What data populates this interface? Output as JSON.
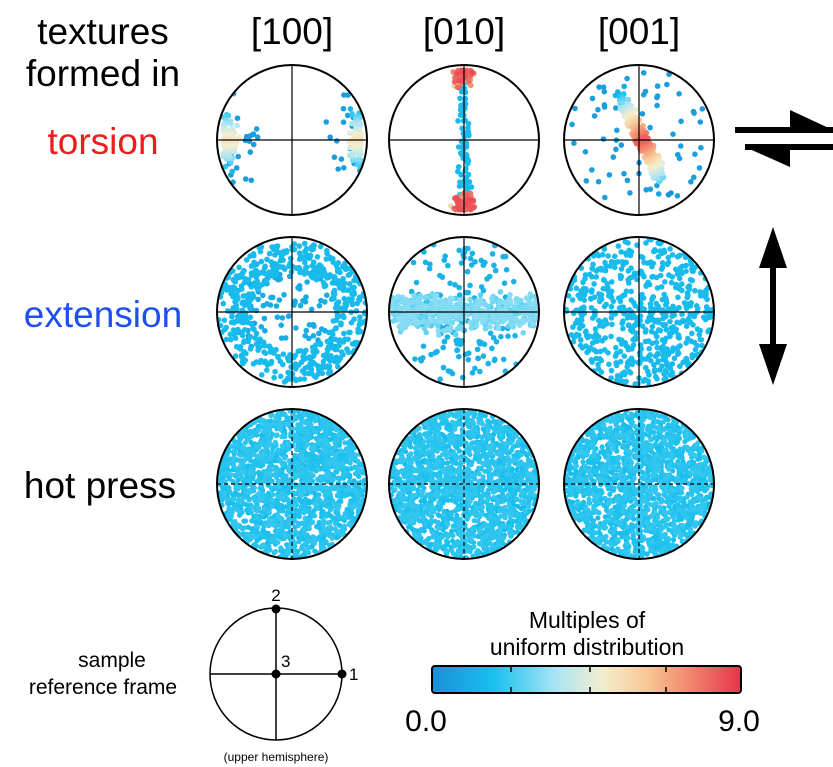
{
  "header": {
    "left_line1": "textures",
    "left_line2": "formed in",
    "columns": [
      "[100]",
      "[010]",
      "[001]"
    ]
  },
  "rows": [
    {
      "label": "torsion",
      "color": "#ee1c1c",
      "pattern": "torsion",
      "symbol": "shear-arrows-icon"
    },
    {
      "label": "extension",
      "color": "#1f4ff0",
      "pattern": "extension",
      "symbol": "vertical-double-arrow-icon"
    },
    {
      "label": "hot press",
      "color": "#000000",
      "pattern": "uniform",
      "symbol": ""
    }
  ],
  "reference": {
    "label_line1": "sample",
    "label_line2": "reference frame",
    "axis_labels": [
      "1",
      "2",
      "3"
    ],
    "caption": "(upper hemisphere)"
  },
  "colorbar": {
    "title_line1": "Multiples of",
    "title_line2": "uniform distribution",
    "min_label": "0.0",
    "max_label": "9.0",
    "min": 0.0,
    "max": 9.0,
    "stops": [
      "#1a8fd6",
      "#19c0ee",
      "#a9e4f5",
      "#f3efcf",
      "#f8c694",
      "#f07e6a",
      "#e8344d"
    ]
  }
}
